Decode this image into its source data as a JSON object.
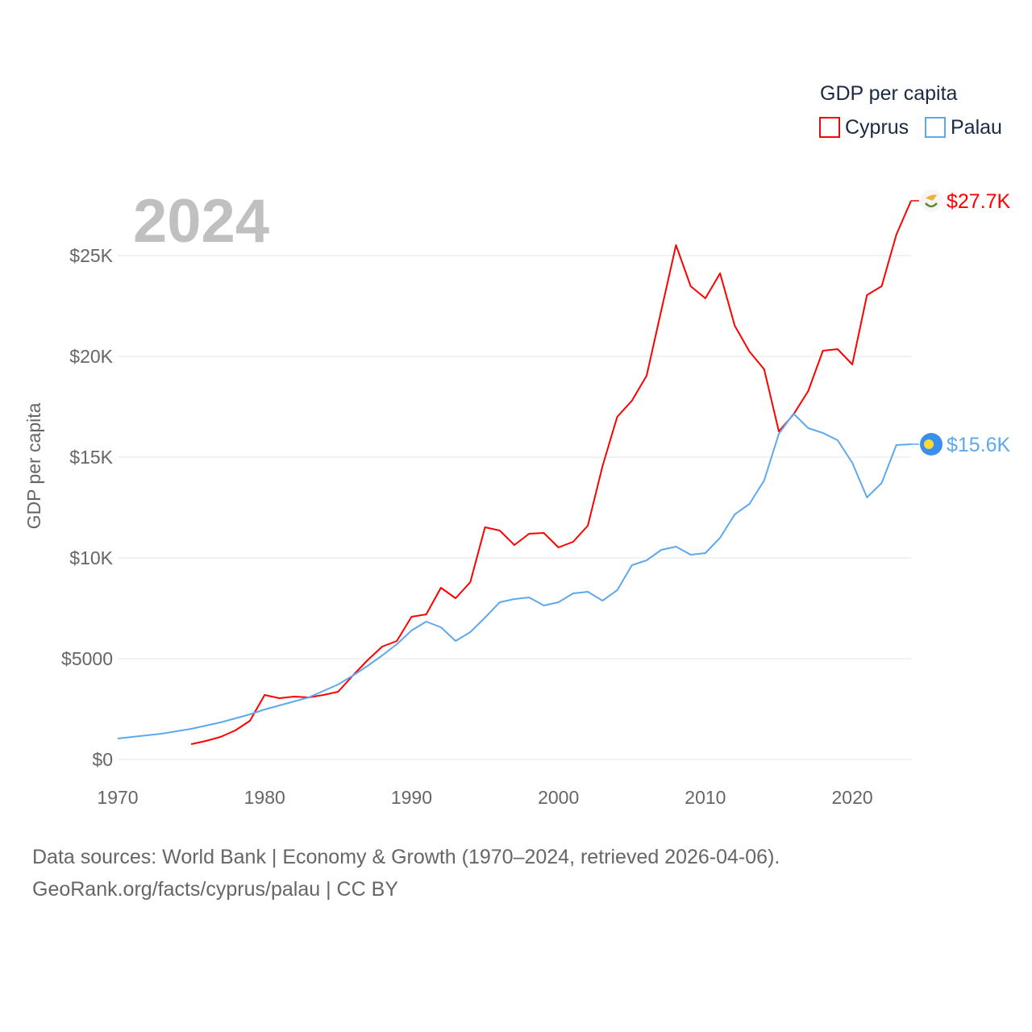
{
  "chart_data": {
    "type": "line",
    "title": "",
    "year_label": "2024",
    "xlabel": "",
    "ylabel": "GDP per capita",
    "xlim": [
      1970,
      2024
    ],
    "ylim": [
      0,
      27720
    ],
    "x_ticks": [
      1970,
      1980,
      1990,
      2000,
      2010,
      2020
    ],
    "x_tick_labels": [
      "1970",
      "1980",
      "1990",
      "2000",
      "2010",
      "2020"
    ],
    "y_ticks": [
      0,
      5000,
      10000,
      15000,
      20000,
      25000
    ],
    "y_tick_labels": [
      "$0",
      "$5000",
      "$10K",
      "$15K",
      "$20K",
      "$25K"
    ],
    "grid": true,
    "legend": {
      "title": "GDP per capita",
      "placement": "top-right",
      "entries": [
        "Cyprus",
        "Palau"
      ]
    },
    "series": [
      {
        "name": "Cyprus",
        "color": "#ff0000",
        "end_label": "$27.7K",
        "flag": "cyprus-flag",
        "x": [
          1975,
          1976,
          1977,
          1978,
          1979,
          1980,
          1981,
          1982,
          1983,
          1984,
          1985,
          1986,
          1987,
          1988,
          1989,
          1990,
          1991,
          1992,
          1993,
          1994,
          1995,
          1996,
          1997,
          1998,
          1999,
          2000,
          2001,
          2002,
          2003,
          2004,
          2005,
          2006,
          2007,
          2008,
          2009,
          2010,
          2011,
          2012,
          2013,
          2014,
          2015,
          2016,
          2017,
          2018,
          2019,
          2020,
          2021,
          2022,
          2023,
          2024
        ],
        "values": [
          760,
          920,
          1120,
          1440,
          1920,
          3200,
          3040,
          3120,
          3080,
          3200,
          3360,
          4160,
          4920,
          5600,
          5880,
          7080,
          7200,
          8520,
          8000,
          8800,
          11520,
          11360,
          10640,
          11200,
          11240,
          10520,
          10800,
          11600,
          14560,
          17000,
          17800,
          19040,
          22280,
          25520,
          23480,
          22880,
          24120,
          21520,
          20240,
          19360,
          16280,
          17120,
          18280,
          20280,
          20360,
          19600,
          23040,
          23480,
          26040,
          27720
        ]
      },
      {
        "name": "Palau",
        "color": "#5ea8ee",
        "end_label": "$15.6K",
        "flag": "palau-flag",
        "x": [
          1970,
          1971,
          1972,
          1973,
          1974,
          1975,
          1976,
          1977,
          1978,
          1979,
          1980,
          1981,
          1982,
          1983,
          1984,
          1985,
          1986,
          1987,
          1988,
          1989,
          1990,
          1991,
          1992,
          1993,
          1994,
          1995,
          1996,
          1997,
          1998,
          1999,
          2000,
          2001,
          2002,
          2003,
          2004,
          2005,
          2006,
          2007,
          2008,
          2009,
          2010,
          2011,
          2012,
          2013,
          2014,
          2015,
          2016,
          2017,
          2018,
          2019,
          2020,
          2021,
          2022,
          2023,
          2024
        ],
        "values": [
          1040,
          1120,
          1200,
          1280,
          1400,
          1520,
          1680,
          1840,
          2040,
          2240,
          2480,
          2680,
          2880,
          3080,
          3400,
          3720,
          4160,
          4640,
          5160,
          5720,
          6400,
          6840,
          6560,
          5880,
          6320,
          7040,
          7800,
          7960,
          8040,
          7640,
          7800,
          8240,
          8320,
          7880,
          8400,
          9640,
          9880,
          10400,
          10560,
          10160,
          10240,
          11000,
          12160,
          12680,
          13840,
          16160,
          17160,
          16440,
          16200,
          15840,
          14720,
          13000,
          13720,
          15600,
          15640
        ]
      }
    ]
  },
  "footer": {
    "line1": "Data sources: World Bank | Economy & Growth (1970–2024, retrieved 2026-04-06).",
    "line2": "GeoRank.org/facts/cyprus/palau | CC BY"
  }
}
